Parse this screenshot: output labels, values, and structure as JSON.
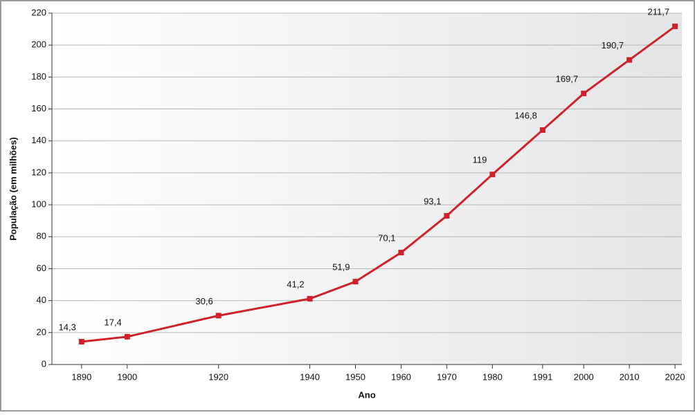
{
  "chart_data": {
    "type": "line",
    "x_label": "Ano",
    "y_label": "População (em milhões)",
    "x": [
      1890,
      1900,
      1920,
      1940,
      1950,
      1960,
      1970,
      1980,
      1991,
      2000,
      2010,
      2020
    ],
    "series": [
      {
        "name": "População",
        "color": "#d0202a",
        "values": [
          14.3,
          17.4,
          30.6,
          41.2,
          51.9,
          70.1,
          93.1,
          119,
          146.8,
          169.7,
          190.7,
          211.7
        ],
        "value_labels": [
          "14,3",
          "17,4",
          "30,6",
          "41,2",
          "51,9",
          "70,1",
          "93,1",
          "119",
          "146,8",
          "169,7",
          "190,7",
          "211,7"
        ]
      }
    ],
    "xlim": [
      1883.5,
      2021.5
    ],
    "xticks": [
      1890,
      1900,
      1920,
      1940,
      1950,
      1960,
      1970,
      1980,
      1991,
      2000,
      2010,
      2020
    ],
    "ylim": [
      0,
      220
    ],
    "yticks": [
      0,
      20,
      40,
      60,
      80,
      100,
      120,
      140,
      160,
      180,
      200,
      220
    ],
    "grid": true
  }
}
